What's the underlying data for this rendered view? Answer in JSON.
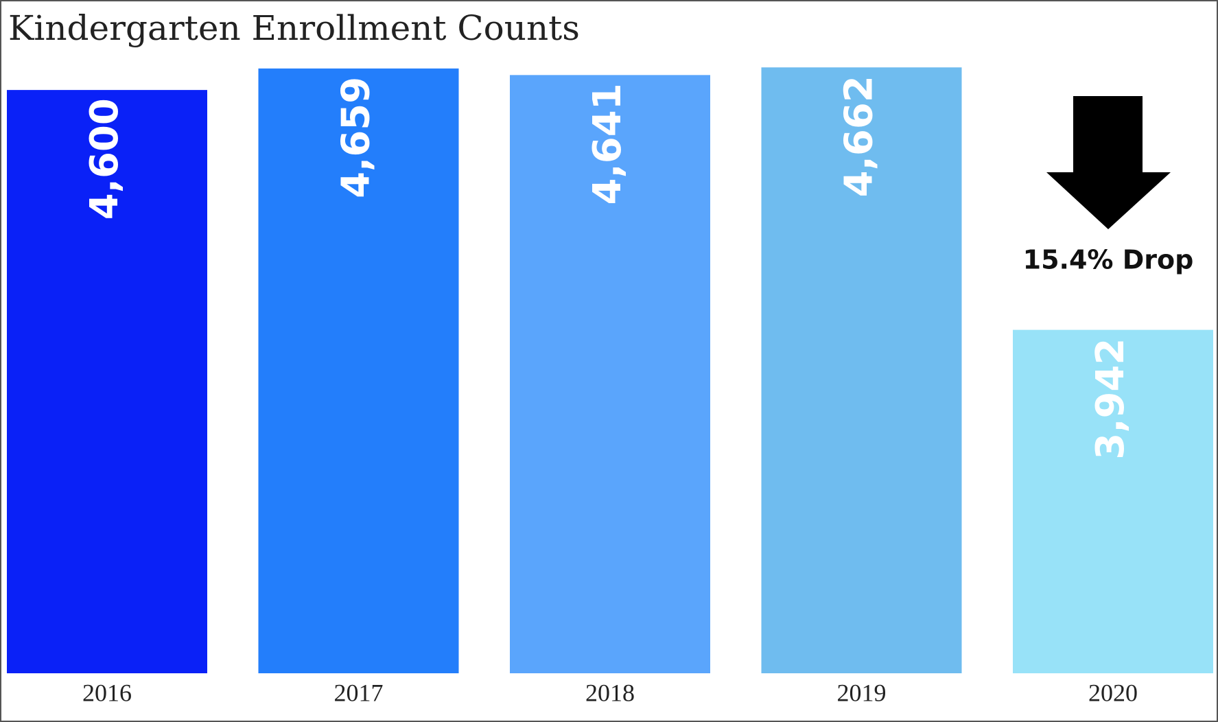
{
  "chart_data": {
    "type": "bar",
    "title": "Kindergarten Enrollment Counts",
    "categories": [
      "2016",
      "2017",
      "2018",
      "2019",
      "2020"
    ],
    "values": [
      4600,
      4659,
      4641,
      4662,
      3942
    ],
    "value_labels": [
      "4,600",
      "4,659",
      "4,641",
      "4,662",
      "3,942"
    ],
    "colors": [
      "#0a21f7",
      "#237efb",
      "#5aa5fc",
      "#6fbcef",
      "#98e2f8"
    ],
    "ylim": [
      3000,
      4700
    ],
    "annotation": "15.4% Drop"
  }
}
